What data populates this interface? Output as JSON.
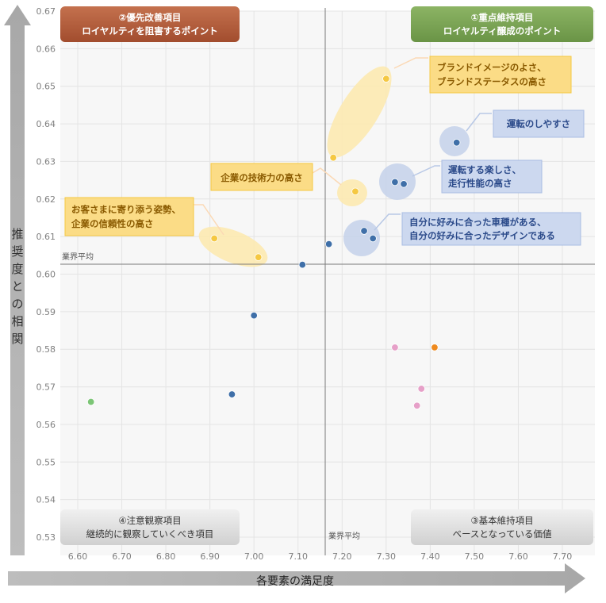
{
  "chart_data": {
    "type": "scatter",
    "xlabel": "各要素の満足度",
    "ylabel": "推奨度との相関",
    "xlim": [
      6.55,
      7.78
    ],
    "ylim": [
      0.527,
      0.67
    ],
    "x_ticks": [
      "6.60",
      "6.70",
      "6.80",
      "6.90",
      "7.00",
      "7.10",
      "7.20",
      "7.30",
      "7.40",
      "7.50",
      "7.60",
      "7.70"
    ],
    "y_ticks": [
      "0.53",
      "0.54",
      "0.55",
      "0.56",
      "0.57",
      "0.58",
      "0.59",
      "0.60",
      "0.61",
      "0.62",
      "0.63",
      "0.64",
      "0.65",
      "0.66",
      "0.67"
    ],
    "grid": true,
    "average_lines": {
      "x": 7.17,
      "y": 0.603,
      "label": "業界平均"
    },
    "points": [
      {
        "x": 7.3,
        "y": 0.652,
        "color": "#f5c842"
      },
      {
        "x": 7.18,
        "y": 0.631,
        "color": "#f5c842"
      },
      {
        "x": 7.23,
        "y": 0.622,
        "color": "#f5c842"
      },
      {
        "x": 6.91,
        "y": 0.6095,
        "color": "#f5c842"
      },
      {
        "x": 7.01,
        "y": 0.6045,
        "color": "#f5c842"
      },
      {
        "x": 7.46,
        "y": 0.635,
        "color": "#3f6fa8"
      },
      {
        "x": 7.32,
        "y": 0.6245,
        "color": "#3f6fa8"
      },
      {
        "x": 7.34,
        "y": 0.624,
        "color": "#3f6fa8"
      },
      {
        "x": 7.25,
        "y": 0.6115,
        "color": "#3f6fa8"
      },
      {
        "x": 7.27,
        "y": 0.6095,
        "color": "#3f6fa8"
      },
      {
        "x": 7.17,
        "y": 0.608,
        "color": "#3f6fa8"
      },
      {
        "x": 7.11,
        "y": 0.6025,
        "color": "#3f6fa8"
      },
      {
        "x": 7.0,
        "y": 0.589,
        "color": "#3f6fa8"
      },
      {
        "x": 6.95,
        "y": 0.568,
        "color": "#3f6fa8"
      },
      {
        "x": 6.63,
        "y": 0.566,
        "color": "#7cc576"
      },
      {
        "x": 7.32,
        "y": 0.5805,
        "color": "#e6a0c8"
      },
      {
        "x": 7.38,
        "y": 0.5695,
        "color": "#e6a0c8"
      },
      {
        "x": 7.37,
        "y": 0.565,
        "color": "#e6a0c8"
      },
      {
        "x": 7.41,
        "y": 0.5805,
        "color": "#ef8a1e"
      }
    ],
    "quadrants": [
      {
        "line1": "②優先改善項目",
        "line2": "ロイヤルティを阻害するポイント"
      },
      {
        "line1": "①重点維持項目",
        "line2": "ロイヤルティ醸成のポイント"
      },
      {
        "line1": "④注意観察項目",
        "line2": "継続的に観察していくべき項目"
      },
      {
        "line1": "③基本維持項目",
        "line2": "ベースとなっている価値"
      }
    ],
    "annotations": {
      "brand": [
        "ブランドイメージのよさ、",
        "ブランドステータスの高さ"
      ],
      "tech": [
        "企業の技術力の高さ"
      ],
      "trust": [
        "お客さまに寄り添う姿勢、",
        "企業の信頼性の高さ"
      ],
      "easy": [
        "運転のしやすさ"
      ],
      "fun": [
        "運転する楽しさ、",
        "走行性能の高さ"
      ],
      "match": [
        "自分に好みに合った車種がある、",
        "自分の好みに合ったデザインである"
      ]
    }
  }
}
